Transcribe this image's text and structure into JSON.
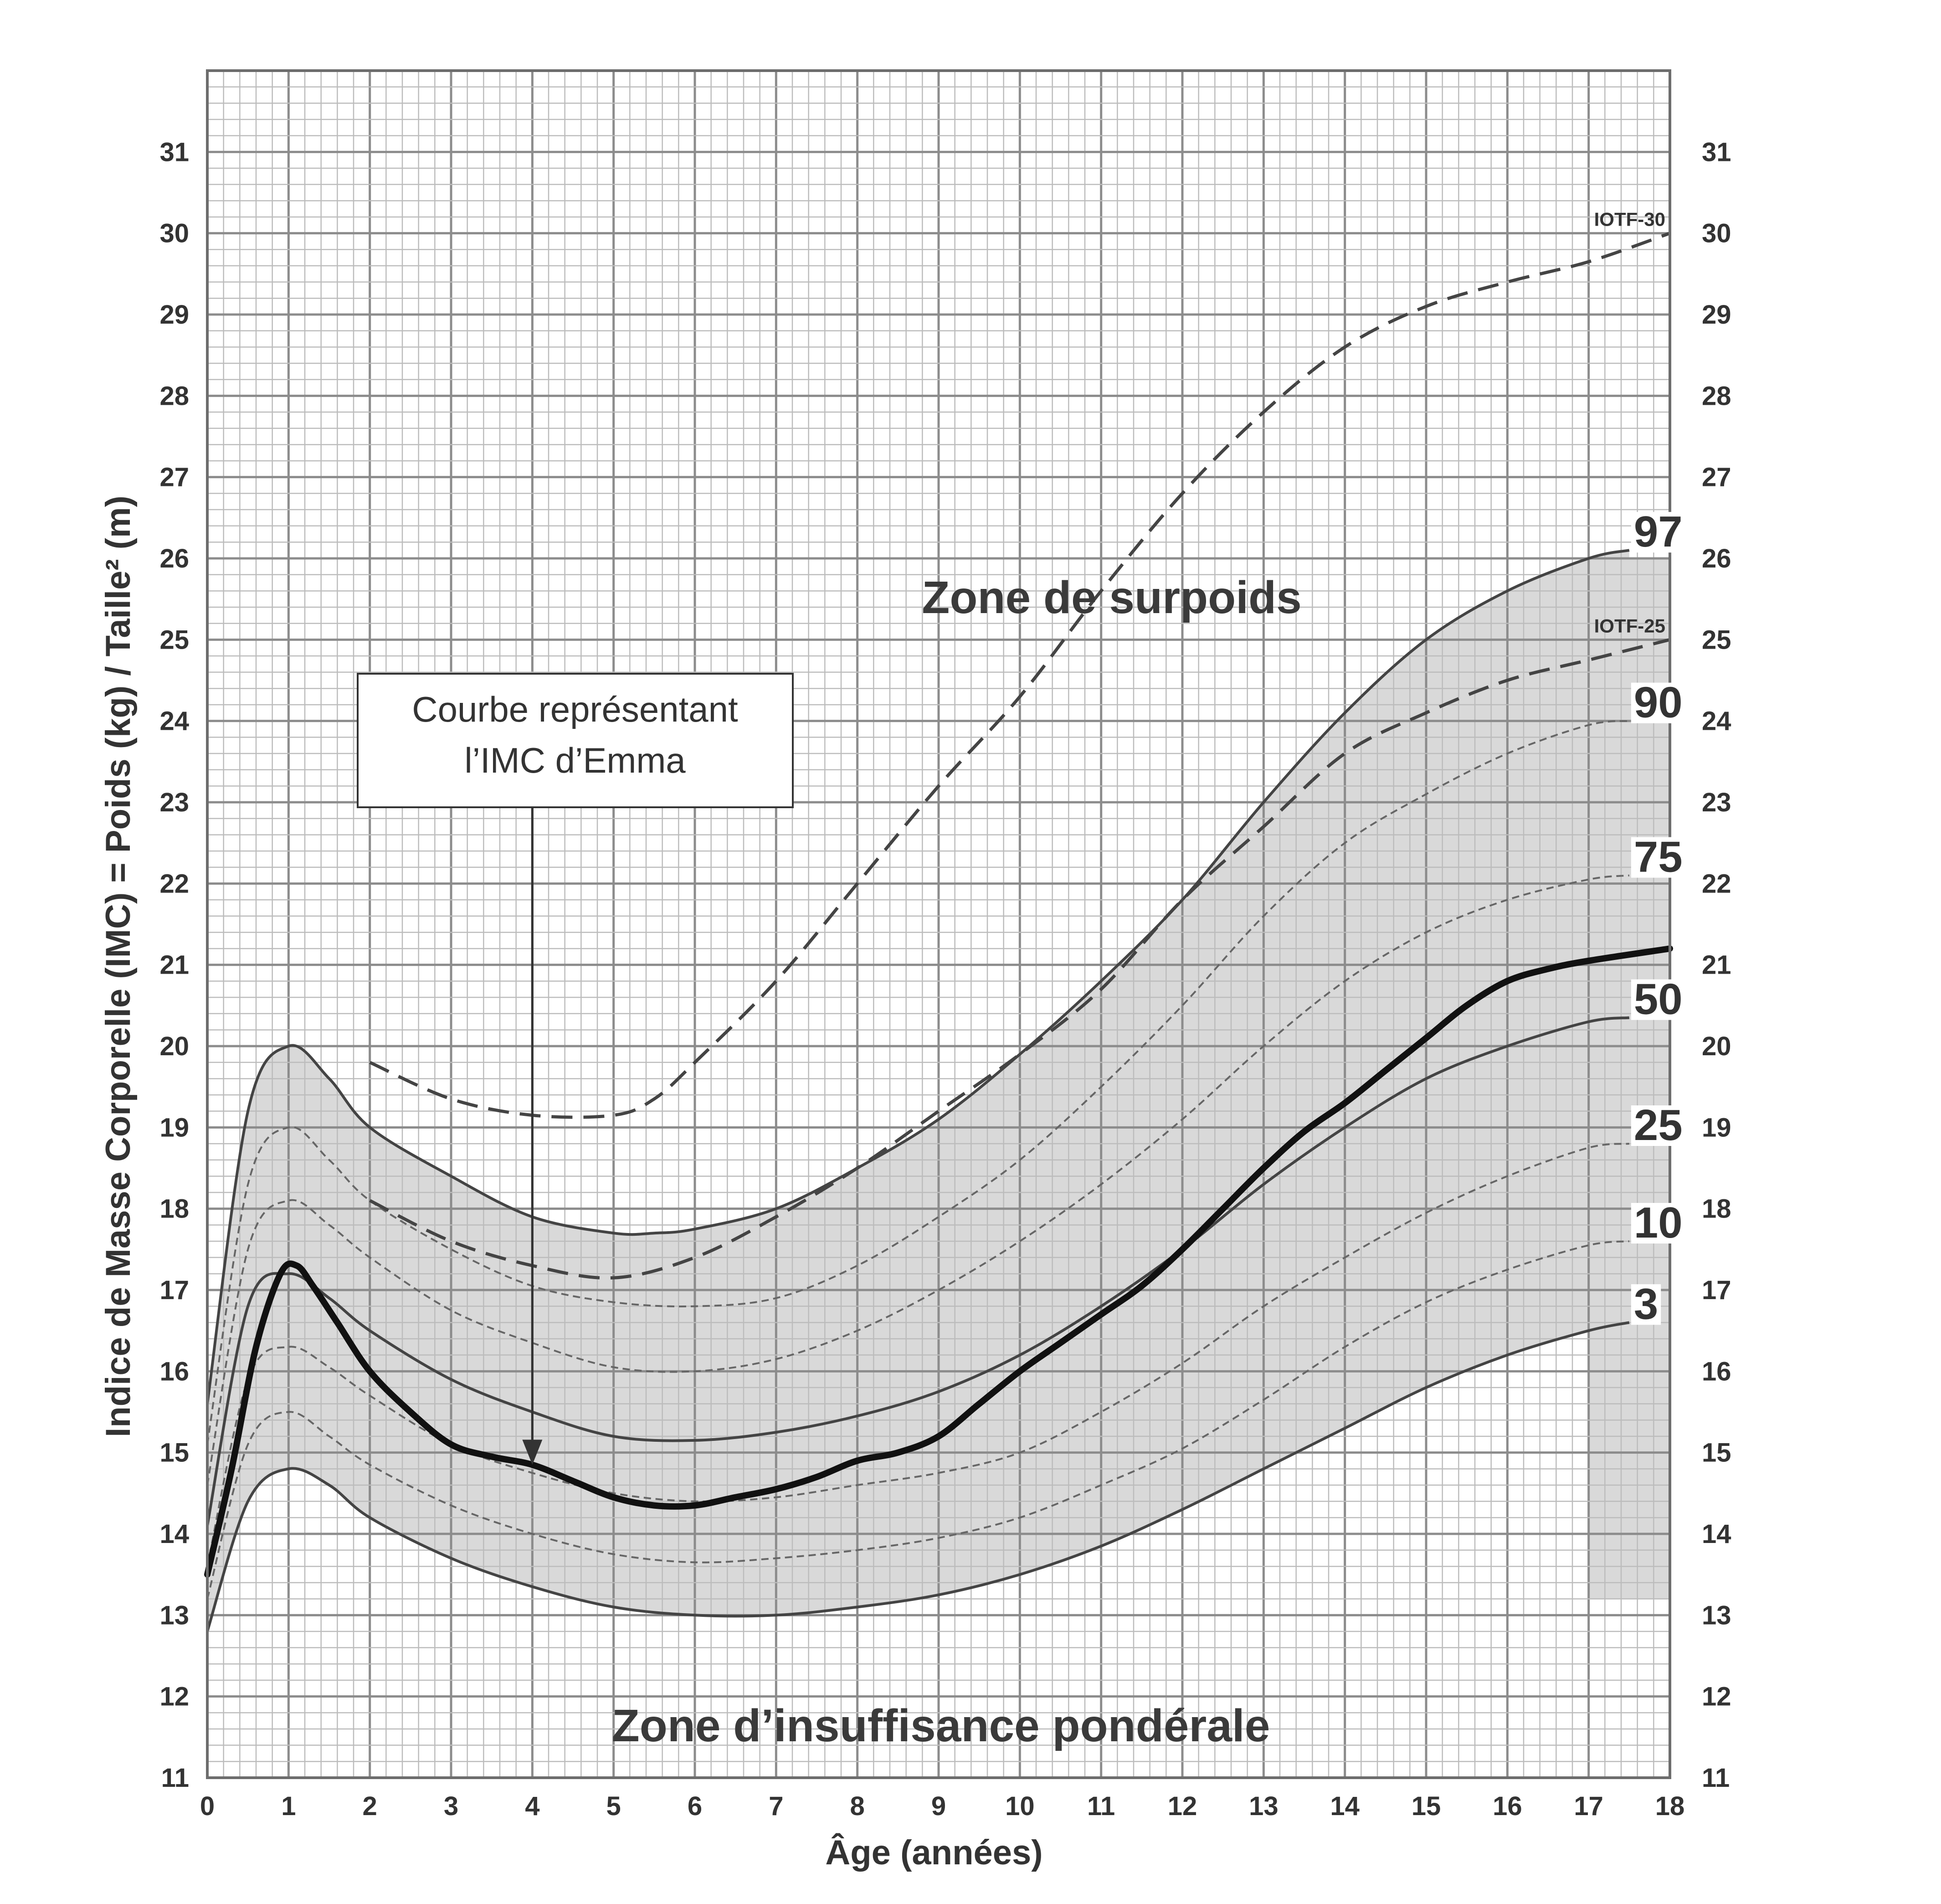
{
  "chart_data": {
    "type": "line",
    "xlabel": "Âge (années)",
    "ylabel": "Indice de Masse Corporelle (IMC) = Poids (kg) / Taille² (m)",
    "xlim": [
      0,
      18
    ],
    "ylim": [
      11,
      32
    ],
    "x_ticks": [
      0,
      1,
      2,
      3,
      4,
      5,
      6,
      7,
      8,
      9,
      10,
      11,
      12,
      13,
      14,
      15,
      16,
      17,
      18
    ],
    "y_ticks": [
      11,
      12,
      13,
      14,
      15,
      16,
      17,
      18,
      19,
      20,
      21,
      22,
      23,
      24,
      25,
      26,
      27,
      28,
      29,
      30,
      31
    ],
    "grid": true,
    "right_axis_ticks": true,
    "shaded_band": "between percentile 3 and percentile 97",
    "zones": [
      {
        "label": "Zone de surpoids"
      },
      {
        "label": "Zone d’insuffisance pondérale"
      }
    ],
    "annotation": {
      "text_lines": [
        "Courbe représentant",
        "l’IMC d’Emma"
      ],
      "arrow_to": {
        "x": 4,
        "y": 14.85
      }
    },
    "series": [
      {
        "name": "97",
        "style": "solid",
        "x": [
          0,
          0.5,
          1,
          1.5,
          2,
          3,
          4,
          5,
          5.5,
          6,
          7,
          8,
          9,
          10,
          11,
          12,
          13,
          14,
          15,
          16,
          17,
          17.5
        ],
        "y": [
          15.6,
          19.2,
          20.0,
          19.6,
          19.0,
          18.4,
          17.9,
          17.7,
          17.7,
          17.75,
          18.0,
          18.5,
          19.1,
          19.9,
          20.8,
          21.8,
          23.0,
          24.1,
          25.0,
          25.6,
          26.0,
          26.1
        ]
      },
      {
        "name": "90",
        "style": "dashed",
        "x": [
          0,
          0.5,
          1,
          1.5,
          2,
          3,
          4,
          5,
          6,
          7,
          8,
          9,
          10,
          11,
          12,
          13,
          14,
          15,
          16,
          17,
          17.5
        ],
        "y": [
          15.1,
          18.3,
          19.0,
          18.6,
          18.1,
          17.5,
          17.05,
          16.85,
          16.8,
          16.9,
          17.3,
          17.9,
          18.6,
          19.5,
          20.5,
          21.6,
          22.5,
          23.1,
          23.6,
          23.95,
          24.0
        ]
      },
      {
        "name": "75",
        "style": "dashed",
        "x": [
          0,
          0.5,
          1,
          1.5,
          2,
          3,
          4,
          5,
          6,
          7,
          8,
          9,
          10,
          11,
          12,
          13,
          14,
          15,
          16,
          17,
          17.5
        ],
        "y": [
          14.6,
          17.5,
          18.1,
          17.8,
          17.4,
          16.75,
          16.35,
          16.05,
          16.0,
          16.15,
          16.5,
          17.0,
          17.6,
          18.3,
          19.1,
          20.0,
          20.8,
          21.4,
          21.8,
          22.05,
          22.1
        ]
      },
      {
        "name": "50",
        "style": "solid",
        "x": [
          0,
          0.5,
          1,
          1.5,
          2,
          3,
          4,
          5,
          6,
          7,
          8,
          9,
          10,
          11,
          12,
          13,
          14,
          15,
          16,
          17,
          17.5
        ],
        "y": [
          14.1,
          16.8,
          17.2,
          16.9,
          16.5,
          15.9,
          15.5,
          15.2,
          15.15,
          15.25,
          15.45,
          15.75,
          16.2,
          16.8,
          17.5,
          18.3,
          19.0,
          19.6,
          20.0,
          20.3,
          20.35
        ]
      },
      {
        "name": "25",
        "style": "dashed",
        "x": [
          0,
          0.5,
          1,
          1.5,
          2,
          3,
          4,
          5,
          6,
          7,
          8,
          9,
          10,
          11,
          12,
          13,
          14,
          15,
          16,
          17,
          17.5
        ],
        "y": [
          13.6,
          15.9,
          16.3,
          16.05,
          15.7,
          15.1,
          14.75,
          14.5,
          14.4,
          14.45,
          14.6,
          14.75,
          15.0,
          15.5,
          16.1,
          16.8,
          17.4,
          17.95,
          18.4,
          18.75,
          18.8
        ]
      },
      {
        "name": "10",
        "style": "dashed",
        "x": [
          0,
          0.5,
          1,
          1.5,
          2,
          3,
          4,
          5,
          6,
          7,
          8,
          9,
          10,
          11,
          12,
          13,
          14,
          15,
          16,
          17,
          17.5
        ],
        "y": [
          13.2,
          15.1,
          15.5,
          15.2,
          14.85,
          14.35,
          14.0,
          13.75,
          13.65,
          13.7,
          13.8,
          13.95,
          14.2,
          14.6,
          15.05,
          15.65,
          16.3,
          16.85,
          17.25,
          17.55,
          17.6
        ]
      },
      {
        "name": "3",
        "style": "solid",
        "x": [
          0,
          0.5,
          1,
          1.5,
          2,
          3,
          4,
          5,
          6,
          7,
          8,
          9,
          10,
          11,
          12,
          13,
          14,
          15,
          16,
          17,
          17.5
        ],
        "y": [
          12.8,
          14.4,
          14.8,
          14.6,
          14.2,
          13.7,
          13.35,
          13.1,
          13.0,
          13.0,
          13.1,
          13.25,
          13.5,
          13.85,
          14.3,
          14.8,
          15.3,
          15.8,
          16.2,
          16.5,
          16.6
        ]
      },
      {
        "name": "IOTF-30",
        "style": "longdash",
        "x": [
          2,
          3,
          4,
          5,
          5.5,
          6,
          7,
          8,
          9,
          10,
          11,
          12,
          13,
          14,
          15,
          16,
          17,
          18
        ],
        "y": [
          19.8,
          19.35,
          19.15,
          19.15,
          19.35,
          19.8,
          20.8,
          22.0,
          23.2,
          24.3,
          25.6,
          26.8,
          27.8,
          28.6,
          29.1,
          29.4,
          29.65,
          30.0
        ]
      },
      {
        "name": "IOTF-25",
        "style": "longdash",
        "x": [
          2,
          3,
          4,
          5,
          6,
          7,
          8,
          9,
          10,
          11,
          12,
          13,
          14,
          15,
          16,
          17,
          18
        ],
        "y": [
          18.1,
          17.6,
          17.3,
          17.15,
          17.4,
          17.9,
          18.5,
          19.2,
          19.9,
          20.7,
          21.8,
          22.7,
          23.6,
          24.1,
          24.5,
          24.75,
          25.0
        ]
      },
      {
        "name": "IMC d’Emma",
        "style": "bold",
        "x": [
          0,
          0.3,
          0.6,
          0.9,
          1.1,
          1.3,
          1.6,
          2,
          2.5,
          3,
          3.5,
          4,
          4.5,
          5,
          5.5,
          6,
          6.5,
          7,
          7.5,
          8,
          8.5,
          9,
          9.5,
          10,
          10.5,
          11,
          11.5,
          12,
          12.5,
          13,
          13.5,
          14,
          14.5,
          15,
          15.5,
          16,
          16.5,
          17,
          18
        ],
        "y": [
          13.5,
          14.8,
          16.3,
          17.2,
          17.3,
          17.05,
          16.6,
          16.0,
          15.5,
          15.1,
          14.95,
          14.85,
          14.65,
          14.45,
          14.35,
          14.35,
          14.45,
          14.55,
          14.7,
          14.9,
          15.0,
          15.2,
          15.6,
          16.0,
          16.35,
          16.7,
          17.05,
          17.5,
          18.0,
          18.5,
          18.95,
          19.3,
          19.7,
          20.1,
          20.5,
          20.8,
          20.95,
          21.05,
          21.2
        ]
      }
    ]
  }
}
